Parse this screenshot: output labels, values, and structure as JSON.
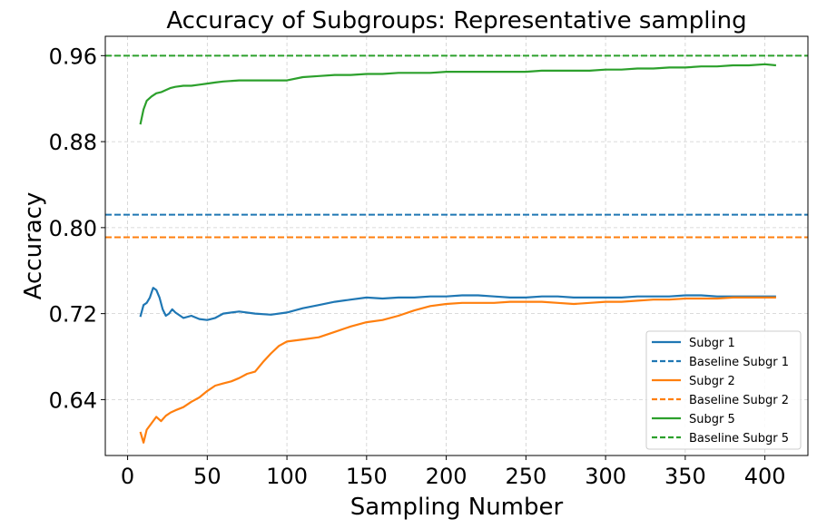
{
  "chart_data": {
    "type": "line",
    "title": "Accuracy of Subgroups: Representative sampling",
    "xlabel": "Sampling Number",
    "ylabel": "Accuracy",
    "xlim": [
      -14,
      427
    ],
    "ylim": [
      0.588,
      0.978
    ],
    "xticks": [
      0,
      50,
      100,
      150,
      200,
      250,
      300,
      350,
      400
    ],
    "yticks": [
      0.64,
      0.72,
      0.8,
      0.88,
      0.96
    ],
    "ytick_labels": [
      "0.64",
      "0.72",
      "0.80",
      "0.88",
      "0.96"
    ],
    "grid": true,
    "legend_position": "lower-right",
    "baselines": [
      {
        "name": "Baseline Subgr 1",
        "value": 0.812,
        "color": "#1f77b4"
      },
      {
        "name": "Baseline Subgr 2",
        "value": 0.791,
        "color": "#ff7f0e"
      },
      {
        "name": "Baseline Subgr 5",
        "value": 0.96,
        "color": "#2ca02c"
      }
    ],
    "series": [
      {
        "name": "Subgr 1",
        "color": "#1f77b4",
        "x": [
          8,
          10,
          12,
          14,
          16,
          18,
          20,
          22,
          24,
          26,
          28,
          30,
          35,
          40,
          45,
          50,
          55,
          60,
          70,
          80,
          90,
          100,
          110,
          120,
          130,
          140,
          150,
          160,
          170,
          180,
          190,
          200,
          210,
          220,
          230,
          240,
          250,
          260,
          270,
          280,
          290,
          300,
          310,
          320,
          330,
          340,
          350,
          360,
          370,
          380,
          390,
          400,
          407
        ],
        "y": [
          0.717,
          0.728,
          0.73,
          0.735,
          0.744,
          0.742,
          0.735,
          0.724,
          0.718,
          0.72,
          0.724,
          0.721,
          0.716,
          0.718,
          0.715,
          0.714,
          0.716,
          0.72,
          0.722,
          0.72,
          0.719,
          0.721,
          0.725,
          0.728,
          0.731,
          0.733,
          0.735,
          0.734,
          0.735,
          0.735,
          0.736,
          0.736,
          0.737,
          0.737,
          0.736,
          0.735,
          0.735,
          0.736,
          0.736,
          0.735,
          0.735,
          0.735,
          0.735,
          0.736,
          0.736,
          0.736,
          0.737,
          0.737,
          0.736,
          0.736,
          0.736,
          0.736,
          0.736
        ]
      },
      {
        "name": "Subgr 2",
        "color": "#ff7f0e",
        "x": [
          8,
          10,
          12,
          15,
          18,
          21,
          24,
          27,
          30,
          35,
          40,
          45,
          50,
          55,
          60,
          65,
          70,
          75,
          80,
          85,
          90,
          95,
          100,
          110,
          120,
          130,
          140,
          150,
          160,
          170,
          180,
          190,
          200,
          210,
          220,
          230,
          240,
          250,
          260,
          270,
          280,
          290,
          300,
          310,
          320,
          330,
          340,
          350,
          360,
          370,
          380,
          390,
          400,
          407
        ],
        "y": [
          0.61,
          0.6,
          0.612,
          0.618,
          0.624,
          0.62,
          0.625,
          0.628,
          0.63,
          0.633,
          0.638,
          0.642,
          0.648,
          0.653,
          0.655,
          0.657,
          0.66,
          0.664,
          0.666,
          0.675,
          0.683,
          0.69,
          0.694,
          0.696,
          0.698,
          0.703,
          0.708,
          0.712,
          0.714,
          0.718,
          0.723,
          0.727,
          0.729,
          0.73,
          0.73,
          0.73,
          0.731,
          0.731,
          0.731,
          0.73,
          0.729,
          0.73,
          0.731,
          0.731,
          0.732,
          0.733,
          0.733,
          0.734,
          0.734,
          0.734,
          0.735,
          0.735,
          0.735,
          0.735
        ]
      },
      {
        "name": "Subgr 5",
        "color": "#2ca02c",
        "x": [
          8,
          10,
          12,
          15,
          18,
          21,
          24,
          27,
          30,
          35,
          40,
          45,
          50,
          55,
          60,
          70,
          80,
          90,
          100,
          110,
          120,
          130,
          140,
          150,
          160,
          170,
          180,
          190,
          200,
          210,
          220,
          230,
          240,
          250,
          260,
          270,
          280,
          290,
          300,
          310,
          320,
          330,
          340,
          350,
          360,
          370,
          380,
          390,
          400,
          407
        ],
        "y": [
          0.896,
          0.91,
          0.918,
          0.922,
          0.925,
          0.926,
          0.928,
          0.93,
          0.931,
          0.932,
          0.932,
          0.933,
          0.934,
          0.935,
          0.936,
          0.937,
          0.937,
          0.937,
          0.937,
          0.94,
          0.941,
          0.942,
          0.942,
          0.943,
          0.943,
          0.944,
          0.944,
          0.944,
          0.945,
          0.945,
          0.945,
          0.945,
          0.945,
          0.945,
          0.946,
          0.946,
          0.946,
          0.946,
          0.947,
          0.947,
          0.948,
          0.948,
          0.949,
          0.949,
          0.95,
          0.95,
          0.951,
          0.951,
          0.952,
          0.951
        ]
      }
    ]
  }
}
